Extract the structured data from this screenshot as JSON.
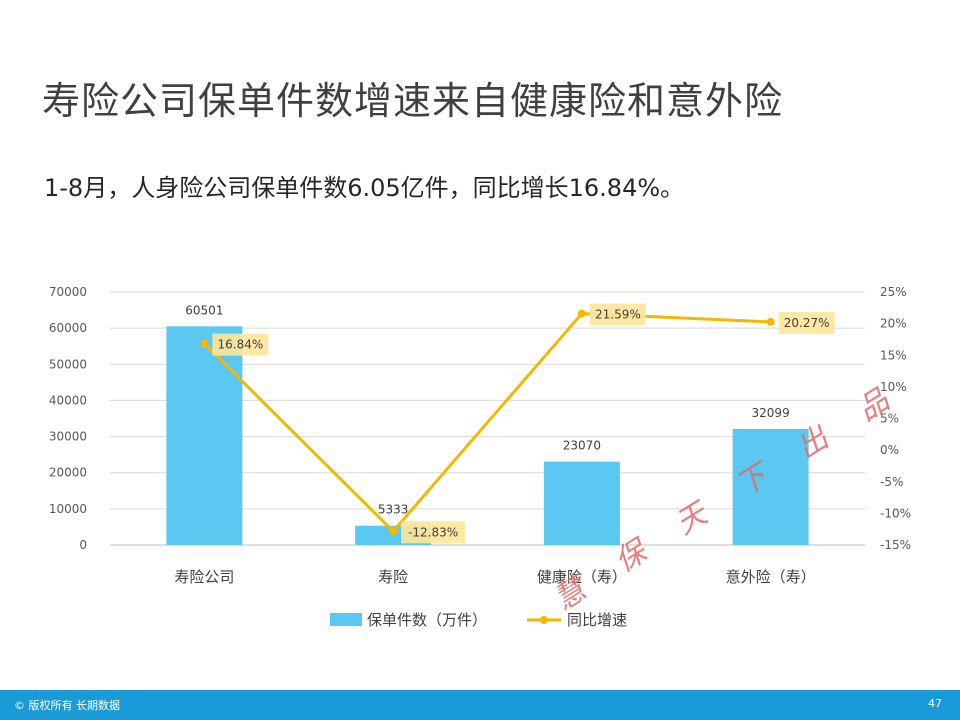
{
  "slide": {
    "title": "寿险公司保单件数增速来自健康险和意外险",
    "subtitle": "1-8月，人身险公司保单件数6.05亿件，同比增长16.84%。",
    "watermark": "慧 保 天 下 出 品",
    "footer_text": "© 版权所有 长期数据",
    "page_number": "47"
  },
  "chart_data": {
    "type": "bar",
    "categories": [
      "寿险公司",
      "寿险",
      "健康险（寿）",
      "意外险（寿）"
    ],
    "series": [
      {
        "name": "保单件数（万件）",
        "type": "bar",
        "axis": "left",
        "values": [
          60501,
          5333,
          23070,
          32099
        ],
        "labels": [
          "60501",
          "5333",
          "23070",
          "32099"
        ],
        "color": "#5bc8f2"
      },
      {
        "name": "同比增速",
        "type": "line",
        "axis": "right",
        "values": [
          16.84,
          -12.83,
          21.59,
          20.27
        ],
        "labels": [
          "16.84%",
          "-12.83%",
          "21.59%",
          "20.27%"
        ],
        "color": "#f5b800"
      }
    ],
    "y_left": {
      "lim": [
        0,
        70000
      ],
      "ticks": [
        0,
        10000,
        20000,
        30000,
        40000,
        50000,
        60000,
        70000
      ],
      "tick_labels": [
        "0",
        "10000",
        "20000",
        "30000",
        "40000",
        "50000",
        "60000",
        "70000"
      ]
    },
    "y_right": {
      "lim": [
        -15,
        25
      ],
      "ticks": [
        -15,
        -10,
        -5,
        0,
        5,
        10,
        15,
        20,
        25
      ],
      "tick_labels": [
        "-15%",
        "-10%",
        "-5%",
        "0%",
        "5%",
        "10%",
        "15%",
        "20%",
        "25%"
      ]
    },
    "grid": true,
    "legend": "bottom",
    "label_box_color": "#ffe699"
  }
}
